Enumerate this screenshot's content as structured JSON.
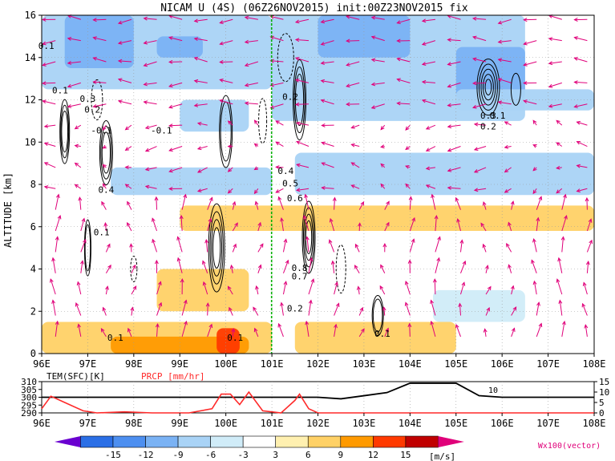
{
  "title": "NICAM U (4S) (06Z26NOV2015) init:00Z23NOV2015 fix",
  "main_panel": {
    "ylabel": "ALTITUDE [km]",
    "yticks": [
      "0",
      "2",
      "4",
      "6",
      "8",
      "10",
      "12",
      "14",
      "16"
    ],
    "xticks": [
      "96E",
      "97E",
      "98E",
      "99E",
      "100E",
      "101E",
      "102E",
      "103E",
      "104E",
      "105E",
      "106E",
      "107E",
      "108E"
    ],
    "contour_labels": [
      "0.1",
      "0.1",
      "-0.1",
      "0.2",
      "0.3",
      "0.4",
      "0.1",
      "0.3",
      "0.2",
      "-0.1",
      "0.1",
      "0.2",
      "0.4",
      "0.5",
      "0.6",
      "0.7",
      "0.8",
      "0.2",
      "0.1",
      "0.1",
      "0.1"
    ]
  },
  "bottom_panel": {
    "tem_label": "TEM(SFC)[K]",
    "prcp_label": "PRCP [mm/hr]",
    "left_ticks": [
      "310",
      "305",
      "300",
      "295",
      "290"
    ],
    "right_ticks": [
      "15",
      "10",
      "5",
      "0"
    ],
    "xticks": [
      "96E",
      "97E",
      "98E",
      "99E",
      "100E",
      "101E",
      "102E",
      "103E",
      "104E",
      "105E",
      "106E",
      "107E",
      "108E"
    ],
    "inline_label": "10"
  },
  "colorbar": {
    "labels": [
      "-15",
      "-12",
      "-9",
      "-6",
      "-3",
      "3",
      "6",
      "9",
      "12",
      "15"
    ],
    "unit": "[m/s]",
    "vector_label": "Wx100(vector)"
  },
  "colors": {
    "neg_strong": "#6a00d0",
    "neg": [
      "#2b6fe6",
      "#4d8ff0",
      "#7ab2f4",
      "#a9d3f6",
      "#d0ecf8"
    ],
    "pos": [
      "#fff0b0",
      "#ffd166",
      "#ff9a00",
      "#ff3a00",
      "#c00000"
    ],
    "pos_strong": "#e0007a",
    "vector": "#e0007a",
    "contour": "#000000",
    "divider": "#00b000",
    "prcp_line": "#ff2a2a"
  },
  "chart_data": {
    "type": "heatmap",
    "description_axes": {
      "x": "longitude (degE)",
      "y": "altitude (km)"
    },
    "xlim": [
      96,
      108
    ],
    "ylim": [
      0,
      16
    ],
    "shading": {
      "min": -15,
      "max": 15,
      "levels": [
        -15,
        -12,
        -9,
        -6,
        -3,
        3,
        6,
        9,
        12,
        15
      ],
      "regions": [
        {
          "lon": [
            96.0,
            101.0
          ],
          "alt": [
            12.5,
            16.0
          ],
          "value": -5
        },
        {
          "lon": [
            96.5,
            98.0
          ],
          "alt": [
            13.5,
            16.0
          ],
          "value": -8
        },
        {
          "lon": [
            98.5,
            99.5
          ],
          "alt": [
            14.0,
            15.0
          ],
          "value": -7
        },
        {
          "lon": [
            99.0,
            100.5
          ],
          "alt": [
            10.5,
            12.0
          ],
          "value": -4
        },
        {
          "lon": [
            101.0,
            106.5
          ],
          "alt": [
            11.0,
            16.0
          ],
          "value": -5
        },
        {
          "lon": [
            102.0,
            104.0
          ],
          "alt": [
            14.0,
            16.0
          ],
          "value": -8
        },
        {
          "lon": [
            105.0,
            106.5
          ],
          "alt": [
            12.0,
            14.5
          ],
          "value": -9
        },
        {
          "lon": [
            105.0,
            108.0
          ],
          "alt": [
            11.5,
            12.5
          ],
          "value": -4
        },
        {
          "lon": [
            97.5,
            101.0
          ],
          "alt": [
            7.5,
            8.8
          ],
          "value": -5
        },
        {
          "lon": [
            101.5,
            108.0
          ],
          "alt": [
            7.5,
            9.5
          ],
          "value": -4
        },
        {
          "lon": [
            99.0,
            108.0
          ],
          "alt": [
            5.8,
            7.0
          ],
          "value": 4
        },
        {
          "lon": [
            96.0,
            101.0
          ],
          "alt": [
            0.0,
            1.5
          ],
          "value": 5
        },
        {
          "lon": [
            97.5,
            100.5
          ],
          "alt": [
            0.0,
            0.8
          ],
          "value": 8
        },
        {
          "lon": [
            99.8,
            100.3
          ],
          "alt": [
            0.0,
            1.2
          ],
          "value": 10
        },
        {
          "lon": [
            98.5,
            100.5
          ],
          "alt": [
            2.0,
            4.0
          ],
          "value": 4
        },
        {
          "lon": [
            101.5,
            105.0
          ],
          "alt": [
            0.0,
            1.5
          ],
          "value": 4
        },
        {
          "lon": [
            104.5,
            106.5
          ],
          "alt": [
            1.5,
            3.0
          ],
          "value": -3
        }
      ]
    },
    "vectors": "wind vectors (u, w x 100)",
    "bottom_series": [
      {
        "name": "TEM(SFC)[K]",
        "x": [
          96,
          97,
          98,
          99,
          100,
          101,
          102,
          102.5,
          103,
          103.5,
          104,
          104.5,
          105,
          105.5,
          106,
          107,
          108
        ],
        "values": [
          300,
          300,
          300,
          300,
          300,
          300,
          300,
          299,
          301,
          303,
          309,
          309,
          309,
          301,
          300,
          300,
          300
        ]
      },
      {
        "name": "PRCP [mm/hr]",
        "x": [
          96,
          96.2,
          96.5,
          96.9,
          97.2,
          97.8,
          98.4,
          99.2,
          99.7,
          99.9,
          100.1,
          100.3,
          100.5,
          100.8,
          101.2,
          101.5,
          101.6,
          101.8,
          102,
          103,
          108
        ],
        "values": [
          2,
          8,
          5,
          1,
          0,
          0.5,
          0,
          0,
          2,
          9,
          9,
          4,
          10,
          1,
          0,
          6,
          9,
          2,
          0,
          0,
          0
        ]
      }
    ]
  }
}
